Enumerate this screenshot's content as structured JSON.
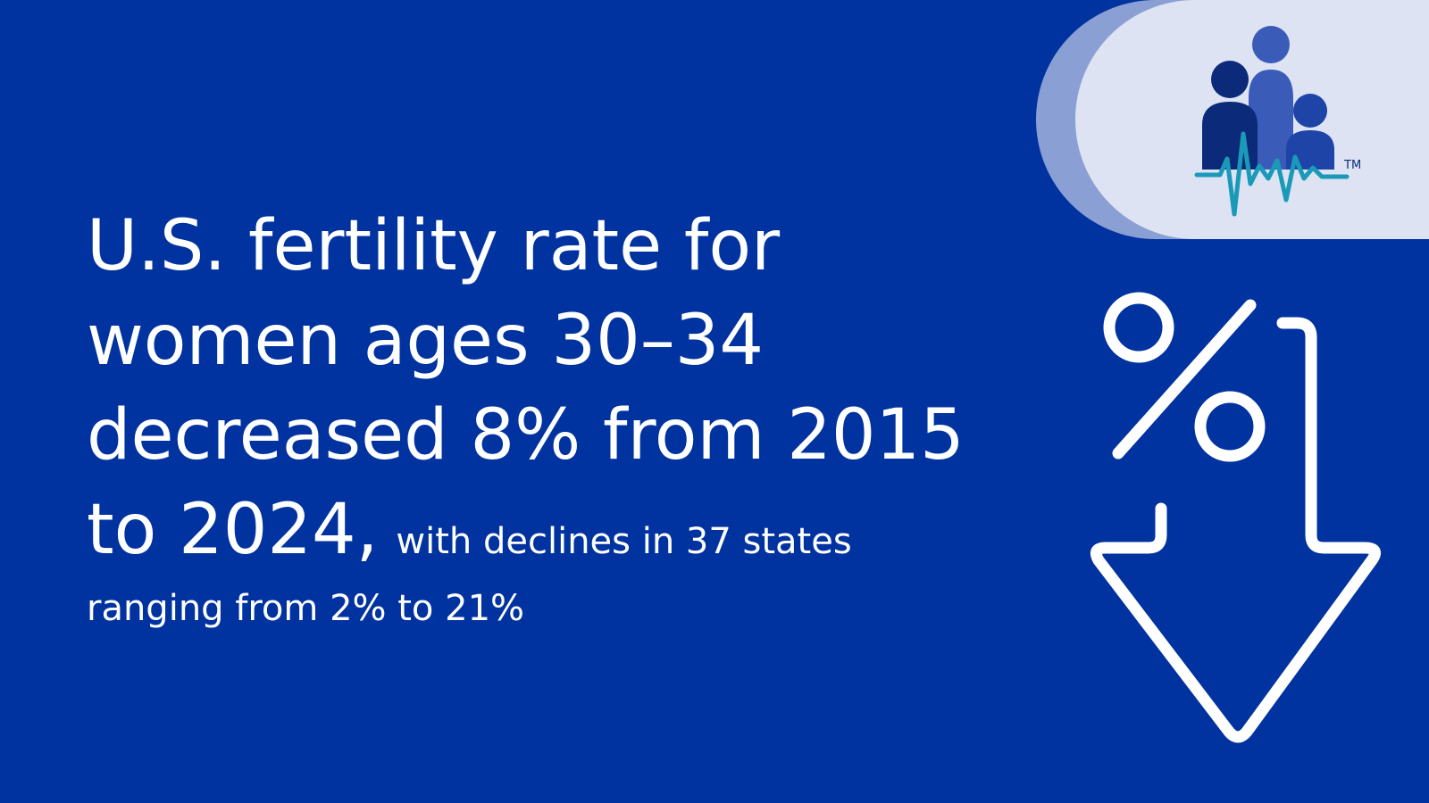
{
  "headline": {
    "lines": [
      "U.S. fertility rate for",
      "women ages 30–34",
      "decreased 8% from 2015",
      "to 2024,"
    ]
  },
  "detail": {
    "lines": [
      "with declines in 37 states",
      "ranging from 2% to 21%"
    ]
  },
  "logo": {
    "trademark": "TM"
  }
}
